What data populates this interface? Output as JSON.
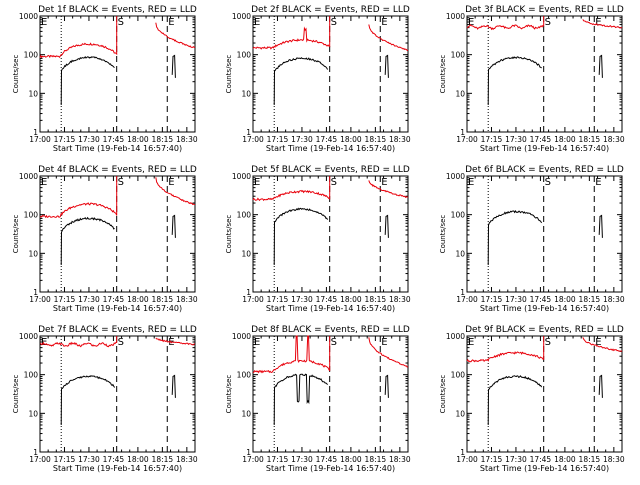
{
  "chart_data": {
    "type": "line",
    "x_ticks": [
      "17:00",
      "17:15",
      "17:30",
      "17:45",
      "18:00",
      "18:15",
      "18:30"
    ],
    "xlim_minutes": [
      0,
      95
    ],
    "y_ticks": [
      "1",
      "10",
      "100",
      "1000"
    ],
    "ylim": [
      1,
      1000
    ],
    "yscale": "log",
    "xlabel": "Start Time (19-Feb-14 16:57:40)",
    "ylabel": "Counts/sec",
    "series_legend": {
      "black": "Events",
      "red": "LLD"
    },
    "colors": {
      "events": "#000000",
      "lld": "#e8000b"
    },
    "vertical_markers": {
      "dotted_minutes": [
        13
      ],
      "dashed_minutes": [
        47,
        78
      ],
      "letters": [
        {
          "label": "E",
          "minute": 0
        },
        {
          "label": "S",
          "minute": 47
        },
        {
          "label": "E",
          "minute": 78
        }
      ]
    },
    "panels": [
      {
        "title": "Det 1f BLACK = Events, RED = LLD",
        "lld_profile": "peaked",
        "lld_base": 90,
        "lld_tail": [
          650,
          150
        ]
      },
      {
        "title": "Det 2f BLACK = Events, RED = LLD",
        "lld_profile": "spiky",
        "lld_base": 150,
        "lld_tail": [
          600,
          130
        ]
      },
      {
        "title": "Det 3f BLACK = Events, RED = LLD",
        "lld_profile": "flat",
        "lld_base": 520,
        "lld_tail": [
          800,
          500
        ]
      },
      {
        "title": "Det 4f BLACK = Events, RED = LLD",
        "lld_profile": "peaked",
        "lld_base": 90,
        "lld_tail": [
          900,
          180
        ]
      },
      {
        "title": "Det 5f BLACK = Events, RED = LLD",
        "lld_profile": "hump",
        "lld_base": 250,
        "lld_tail": [
          800,
          280
        ]
      },
      {
        "title": "Det 6f BLACK = Events, RED = LLD",
        "lld_profile": "none",
        "lld_base": 0,
        "lld_tail": [
          0,
          0
        ]
      },
      {
        "title": "Det 7f BLACK = Events, RED = LLD",
        "lld_profile": "flat",
        "lld_base": 600,
        "lld_tail": [
          900,
          600
        ]
      },
      {
        "title": "Det 8f BLACK = Events, RED = LLD",
        "lld_profile": "spike2",
        "lld_base": 120,
        "lld_tail": [
          900,
          160
        ]
      },
      {
        "title": "Det 9f BLACK = Events, RED = LLD",
        "lld_profile": "hump",
        "lld_base": 230,
        "lld_tail": [
          900,
          400
        ]
      }
    ]
  }
}
